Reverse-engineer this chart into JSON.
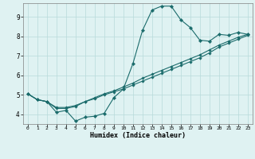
{
  "xlabel": "Humidex (Indice chaleur)",
  "background_color": "#dff2f2",
  "grid_color": "#b8dada",
  "line_color": "#1a6b6b",
  "xlim": [
    -0.5,
    23.5
  ],
  "ylim": [
    3.5,
    9.7
  ],
  "yticks": [
    4,
    5,
    6,
    7,
    8,
    9
  ],
  "xticks": [
    0,
    1,
    2,
    3,
    4,
    5,
    6,
    7,
    8,
    9,
    10,
    11,
    12,
    13,
    14,
    15,
    16,
    17,
    18,
    19,
    20,
    21,
    22,
    23
  ],
  "line1_x": [
    0,
    1,
    2,
    3,
    4,
    5,
    6,
    7,
    8,
    9,
    10,
    11,
    12,
    13,
    14,
    15,
    16,
    17,
    18,
    19,
    20,
    21,
    22,
    23
  ],
  "line1_y": [
    5.05,
    4.75,
    4.65,
    4.1,
    4.2,
    3.65,
    3.85,
    3.9,
    4.05,
    4.85,
    5.3,
    6.6,
    8.3,
    9.35,
    9.55,
    9.55,
    8.85,
    8.45,
    7.8,
    7.75,
    8.1,
    8.05,
    8.2,
    8.1
  ],
  "line2_x": [
    0,
    1,
    2,
    3,
    4,
    5,
    6,
    7,
    8,
    9,
    10,
    11,
    12,
    13,
    14,
    15,
    16,
    17,
    18,
    19,
    20,
    21,
    22,
    23
  ],
  "line2_y": [
    5.05,
    4.75,
    4.65,
    4.3,
    4.3,
    4.4,
    4.65,
    4.85,
    5.05,
    5.2,
    5.4,
    5.6,
    5.85,
    6.05,
    6.25,
    6.45,
    6.65,
    6.85,
    7.05,
    7.3,
    7.55,
    7.75,
    7.95,
    8.1
  ],
  "line3_x": [
    0,
    1,
    2,
    3,
    4,
    5,
    6,
    7,
    8,
    9,
    10,
    11,
    12,
    13,
    14,
    15,
    16,
    17,
    18,
    19,
    20,
    21,
    22,
    23
  ],
  "line3_y": [
    5.05,
    4.75,
    4.65,
    4.35,
    4.35,
    4.45,
    4.65,
    4.8,
    5.0,
    5.15,
    5.3,
    5.5,
    5.7,
    5.9,
    6.1,
    6.3,
    6.5,
    6.7,
    6.9,
    7.15,
    7.45,
    7.65,
    7.85,
    8.05
  ]
}
